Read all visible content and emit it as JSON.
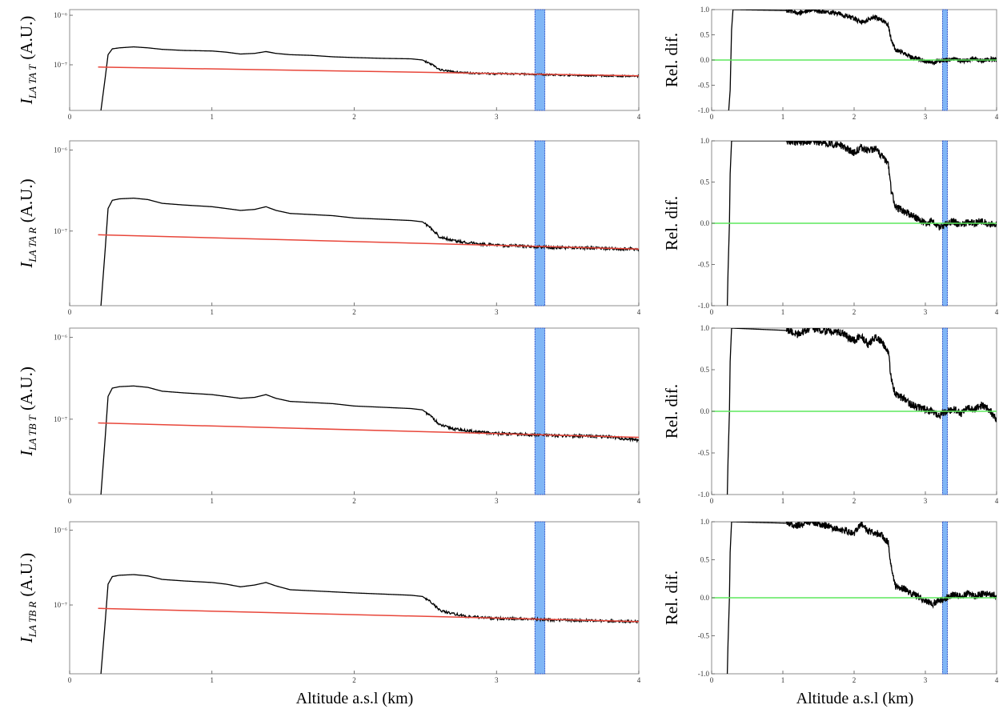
{
  "figure": {
    "left_column_xlabel": "Altitude a.s.l (km)",
    "right_column_xlabel": "Altitude a.s.l (km)"
  },
  "chart_data": [
    {
      "type": "line",
      "panel": "intensity",
      "ylabel": {
        "symbol": "I",
        "subscript": "LA TA T",
        "unit": "(A.U.)"
      },
      "yscale": "log",
      "ylim": [
        1.2e-08,
        1.3e-06
      ],
      "yticks": [
        {
          "value": 1e-07,
          "label": "10⁻⁷"
        },
        {
          "value": 1e-06,
          "label": "10⁻⁶"
        }
      ],
      "xlim": [
        0,
        4
      ],
      "xticks": [
        "0",
        "1",
        "2",
        "3",
        "4"
      ],
      "highlight_band": [
        3.27,
        3.34
      ],
      "series": [
        {
          "role": "signal",
          "color": "#000000",
          "x": [
            0.22,
            0.25,
            0.27,
            0.3,
            0.35,
            0.45,
            0.55,
            0.65,
            0.8,
            1.0,
            1.1,
            1.2,
            1.3,
            1.38,
            1.45,
            1.55,
            1.7,
            1.85,
            2.0,
            2.2,
            2.4,
            2.48,
            2.55,
            2.6,
            2.7,
            2.8,
            2.9,
            3.0,
            3.2,
            3.4,
            3.6,
            3.8,
            4.0
          ],
          "y": [
            1.2e-08,
            5.5e-08,
            1.6e-07,
            2.1e-07,
            2.2e-07,
            2.3e-07,
            2.2e-07,
            2.05e-07,
            1.95e-07,
            1.9e-07,
            1.8e-07,
            1.65e-07,
            1.7e-07,
            1.85e-07,
            1.7e-07,
            1.6e-07,
            1.55e-07,
            1.45e-07,
            1.4e-07,
            1.35e-07,
            1.32e-07,
            1.25e-07,
            1e-07,
            8e-08,
            7.2e-08,
            6.9e-08,
            6.7e-08,
            6.6e-08,
            6.5e-08,
            6.3e-08,
            6.1e-08,
            6e-08,
            5.9e-08
          ]
        },
        {
          "role": "fit",
          "color": "#e8463a",
          "x": [
            0.2,
            4.0
          ],
          "y": [
            9e-08,
            6e-08
          ]
        }
      ]
    },
    {
      "type": "line",
      "panel": "relative-difference",
      "ylabel": "Rel. dif.",
      "ylim": [
        -1.0,
        1.0
      ],
      "yticks": [
        "-1.0",
        "-0.5",
        "0.0",
        "0.5",
        "1.0"
      ],
      "xlim": [
        0,
        4
      ],
      "xticks": [
        "0",
        "1",
        "2",
        "3",
        "4"
      ],
      "highlight_band": [
        3.24,
        3.31
      ],
      "series": [
        {
          "role": "reldif",
          "color": "#000000",
          "x": [
            0.24,
            0.26,
            0.27,
            0.28,
            0.3,
            1.1,
            1.2,
            1.4,
            1.6,
            1.8,
            2.0,
            2.1,
            2.2,
            2.3,
            2.4,
            2.48,
            2.52,
            2.58,
            2.7,
            2.8,
            2.9,
            3.0,
            3.1,
            3.2,
            3.3,
            3.4,
            3.5,
            3.6,
            3.7,
            3.8,
            3.9,
            4.0
          ],
          "y": [
            -1.0,
            -0.6,
            0.0,
            0.6,
            1.0,
            0.98,
            0.92,
            1.0,
            0.95,
            0.92,
            0.82,
            0.75,
            0.8,
            0.85,
            0.78,
            0.7,
            0.4,
            0.2,
            0.15,
            0.05,
            0.03,
            -0.02,
            -0.05,
            -0.02,
            0.0,
            0.02,
            -0.02,
            0.0,
            0.03,
            -0.02,
            0.02,
            0.0
          ]
        },
        {
          "role": "zero",
          "color": "#5de85d",
          "x": [
            0,
            4
          ],
          "y": [
            0,
            0
          ]
        }
      ]
    },
    {
      "type": "line",
      "panel": "intensity",
      "ylabel": {
        "symbol": "I",
        "subscript": "LA TA R",
        "unit": "(A.U.)"
      },
      "yscale": "log",
      "ylim": [
        1.2e-08,
        1.3e-06
      ],
      "yticks": [
        {
          "value": 1e-07,
          "label": "10⁻⁷"
        },
        {
          "value": 1e-06,
          "label": "10⁻⁶"
        }
      ],
      "xlim": [
        0,
        4
      ],
      "xticks": [
        "0",
        "1",
        "2",
        "3",
        "4"
      ],
      "highlight_band": [
        3.27,
        3.34
      ],
      "series": [
        {
          "role": "signal",
          "color": "#000000",
          "x": [
            0.22,
            0.25,
            0.27,
            0.3,
            0.35,
            0.45,
            0.55,
            0.65,
            0.8,
            1.0,
            1.1,
            1.2,
            1.3,
            1.38,
            1.45,
            1.55,
            1.7,
            1.85,
            2.0,
            2.2,
            2.4,
            2.48,
            2.55,
            2.6,
            2.7,
            2.8,
            2.9,
            3.0,
            3.2,
            3.4,
            3.6,
            3.8,
            4.0
          ],
          "y": [
            1.2e-08,
            6e-08,
            1.9e-07,
            2.4e-07,
            2.5e-07,
            2.55e-07,
            2.45e-07,
            2.2e-07,
            2.1e-07,
            2e-07,
            1.9e-07,
            1.8e-07,
            1.85e-07,
            2e-07,
            1.8e-07,
            1.65e-07,
            1.6e-07,
            1.55e-07,
            1.45e-07,
            1.4e-07,
            1.35e-07,
            1.3e-07,
            1.05e-07,
            8.5e-08,
            7.6e-08,
            7.2e-08,
            6.9e-08,
            6.7e-08,
            6.5e-08,
            6.3e-08,
            6.2e-08,
            6.1e-08,
            6e-08
          ]
        },
        {
          "role": "fit",
          "color": "#e8463a",
          "x": [
            0.2,
            4.0
          ],
          "y": [
            9e-08,
            6e-08
          ]
        }
      ]
    },
    {
      "type": "line",
      "panel": "relative-difference",
      "ylabel": "Rel. dif.",
      "ylim": [
        -1.0,
        1.0
      ],
      "yticks": [
        "-1.0",
        "-0.5",
        "0.0",
        "0.5",
        "1.0"
      ],
      "xlim": [
        0,
        4
      ],
      "xticks": [
        "0",
        "1",
        "2",
        "3",
        "4"
      ],
      "highlight_band": [
        3.24,
        3.31
      ],
      "series": [
        {
          "role": "reldif",
          "color": "#000000",
          "x": [
            0.22,
            0.23,
            0.25,
            0.26,
            0.28,
            1.1,
            1.2,
            1.4,
            1.6,
            1.8,
            2.0,
            2.1,
            2.2,
            2.3,
            2.4,
            2.48,
            2.52,
            2.58,
            2.7,
            2.8,
            2.9,
            3.0,
            3.1,
            3.2,
            3.3,
            3.4,
            3.5,
            3.6,
            3.7,
            3.8,
            3.9,
            4.0
          ],
          "y": [
            -1.0,
            -0.6,
            0.0,
            0.6,
            1.0,
            1.0,
            0.98,
            1.0,
            0.97,
            0.95,
            0.85,
            0.92,
            0.88,
            0.9,
            0.8,
            0.72,
            0.4,
            0.2,
            0.15,
            0.1,
            0.05,
            0.0,
            0.02,
            -0.05,
            0.0,
            0.02,
            -0.03,
            0.02,
            0.0,
            0.03,
            -0.02,
            0.0
          ]
        },
        {
          "role": "zero",
          "color": "#5de85d",
          "x": [
            0,
            4
          ],
          "y": [
            0,
            0
          ]
        }
      ]
    },
    {
      "type": "line",
      "panel": "intensity",
      "ylabel": {
        "symbol": "I",
        "subscript": "LA TB T",
        "unit": "(A.U.)"
      },
      "yscale": "log",
      "ylim": [
        1.2e-08,
        1.3e-06
      ],
      "yticks": [
        {
          "value": 1e-07,
          "label": "10⁻⁷"
        },
        {
          "value": 1e-06,
          "label": "10⁻⁶"
        }
      ],
      "xlim": [
        0,
        4
      ],
      "xticks": [
        "0",
        "1",
        "2",
        "3",
        "4"
      ],
      "highlight_band": [
        3.27,
        3.34
      ],
      "series": [
        {
          "role": "signal",
          "color": "#000000",
          "x": [
            0.22,
            0.25,
            0.27,
            0.3,
            0.35,
            0.45,
            0.55,
            0.65,
            0.8,
            1.0,
            1.1,
            1.2,
            1.3,
            1.38,
            1.45,
            1.55,
            1.7,
            1.85,
            2.0,
            2.2,
            2.4,
            2.48,
            2.55,
            2.6,
            2.7,
            2.8,
            2.9,
            3.0,
            3.2,
            3.4,
            3.6,
            3.8,
            4.0
          ],
          "y": [
            1.2e-08,
            6e-08,
            1.9e-07,
            2.4e-07,
            2.5e-07,
            2.55e-07,
            2.45e-07,
            2.2e-07,
            2.1e-07,
            2e-07,
            1.9e-07,
            1.8e-07,
            1.85e-07,
            2e-07,
            1.8e-07,
            1.65e-07,
            1.6e-07,
            1.55e-07,
            1.45e-07,
            1.4e-07,
            1.35e-07,
            1.3e-07,
            1.05e-07,
            8.5e-08,
            7.6e-08,
            7.2e-08,
            6.9e-08,
            6.7e-08,
            6.5e-08,
            6.3e-08,
            6.2e-08,
            6.1e-08,
            5.5e-08
          ]
        },
        {
          "role": "fit",
          "color": "#e8463a",
          "x": [
            0.2,
            4.0
          ],
          "y": [
            9e-08,
            6e-08
          ]
        }
      ]
    },
    {
      "type": "line",
      "panel": "relative-difference",
      "ylabel": "Rel. dif.",
      "ylim": [
        -1.0,
        1.0
      ],
      "yticks": [
        "-1.0",
        "-0.5",
        "0.0",
        "0.5",
        "1.0"
      ],
      "xlim": [
        0,
        4
      ],
      "xticks": [
        "0",
        "1",
        "2",
        "3",
        "4"
      ],
      "highlight_band": [
        3.24,
        3.31
      ],
      "series": [
        {
          "role": "reldif",
          "color": "#000000",
          "x": [
            0.22,
            0.23,
            0.25,
            0.26,
            0.28,
            1.1,
            1.2,
            1.4,
            1.6,
            1.8,
            2.0,
            2.1,
            2.2,
            2.3,
            2.4,
            2.48,
            2.52,
            2.58,
            2.7,
            2.8,
            2.9,
            3.0,
            3.1,
            3.2,
            3.3,
            3.4,
            3.5,
            3.6,
            3.7,
            3.8,
            3.9,
            4.0
          ],
          "y": [
            -1.0,
            -0.6,
            0.0,
            0.6,
            1.0,
            0.97,
            0.92,
            1.0,
            0.96,
            0.95,
            0.85,
            0.9,
            0.8,
            0.9,
            0.82,
            0.72,
            0.4,
            0.2,
            0.15,
            0.08,
            0.05,
            0.02,
            0.0,
            -0.05,
            0.0,
            0.02,
            -0.03,
            0.05,
            0.02,
            0.08,
            0.02,
            -0.1
          ]
        },
        {
          "role": "zero",
          "color": "#5de85d",
          "x": [
            0,
            4
          ],
          "y": [
            0,
            0
          ]
        }
      ]
    },
    {
      "type": "line",
      "panel": "intensity",
      "ylabel": {
        "symbol": "I",
        "subscript": "LA TB R",
        "unit": "(A.U.)"
      },
      "yscale": "log",
      "ylim": [
        1.2e-08,
        1.3e-06
      ],
      "yticks": [
        {
          "value": 1e-07,
          "label": "10⁻⁷"
        },
        {
          "value": 1e-06,
          "label": "10⁻⁶"
        }
      ],
      "xlim": [
        0,
        4
      ],
      "xticks": [
        "0",
        "1",
        "2",
        "3",
        "4"
      ],
      "highlight_band": [
        3.27,
        3.34
      ],
      "series": [
        {
          "role": "signal",
          "color": "#000000",
          "x": [
            0.22,
            0.25,
            0.27,
            0.3,
            0.35,
            0.45,
            0.55,
            0.65,
            0.8,
            1.0,
            1.1,
            1.2,
            1.3,
            1.38,
            1.45,
            1.55,
            1.7,
            1.85,
            2.0,
            2.2,
            2.4,
            2.48,
            2.55,
            2.6,
            2.7,
            2.8,
            2.9,
            3.0,
            3.2,
            3.4,
            3.6,
            3.8,
            4.0
          ],
          "y": [
            1.2e-08,
            6e-08,
            1.9e-07,
            2.4e-07,
            2.5e-07,
            2.55e-07,
            2.45e-07,
            2.2e-07,
            2.1e-07,
            2e-07,
            1.9e-07,
            1.75e-07,
            1.85e-07,
            2e-07,
            1.8e-07,
            1.6e-07,
            1.55e-07,
            1.5e-07,
            1.45e-07,
            1.4e-07,
            1.35e-07,
            1.3e-07,
            1.05e-07,
            8.5e-08,
            7.6e-08,
            7e-08,
            6.8e-08,
            6.6e-08,
            6.5e-08,
            6.3e-08,
            6.2e-08,
            6.1e-08,
            6e-08
          ]
        },
        {
          "role": "fit",
          "color": "#e8463a",
          "x": [
            0.2,
            4.0
          ],
          "y": [
            9e-08,
            6e-08
          ]
        }
      ]
    },
    {
      "type": "line",
      "panel": "relative-difference",
      "ylabel": "Rel. dif.",
      "ylim": [
        -1.0,
        1.0
      ],
      "yticks": [
        "-1.0",
        "-0.5",
        "0.0",
        "0.5",
        "1.0"
      ],
      "xlim": [
        0,
        4
      ],
      "xticks": [
        "0",
        "1",
        "2",
        "3",
        "4"
      ],
      "highlight_band": [
        3.24,
        3.31
      ],
      "series": [
        {
          "role": "reldif",
          "color": "#000000",
          "x": [
            0.22,
            0.23,
            0.25,
            0.26,
            0.28,
            1.1,
            1.2,
            1.4,
            1.6,
            1.8,
            2.0,
            2.1,
            2.2,
            2.3,
            2.4,
            2.48,
            2.52,
            2.58,
            2.7,
            2.8,
            2.9,
            3.0,
            3.1,
            3.2,
            3.3,
            3.4,
            3.5,
            3.6,
            3.7,
            3.8,
            3.9,
            4.0
          ],
          "y": [
            -1.0,
            -0.6,
            0.0,
            0.6,
            1.0,
            0.98,
            0.95,
            1.0,
            0.95,
            0.9,
            0.85,
            0.98,
            0.88,
            0.86,
            0.82,
            0.72,
            0.4,
            0.15,
            0.12,
            0.05,
            0.02,
            -0.05,
            -0.08,
            -0.03,
            0.0,
            0.05,
            0.02,
            0.06,
            0.02,
            0.05,
            0.06,
            0.02
          ]
        },
        {
          "role": "zero",
          "color": "#5de85d",
          "x": [
            0,
            4
          ],
          "y": [
            0,
            0
          ]
        }
      ]
    }
  ]
}
